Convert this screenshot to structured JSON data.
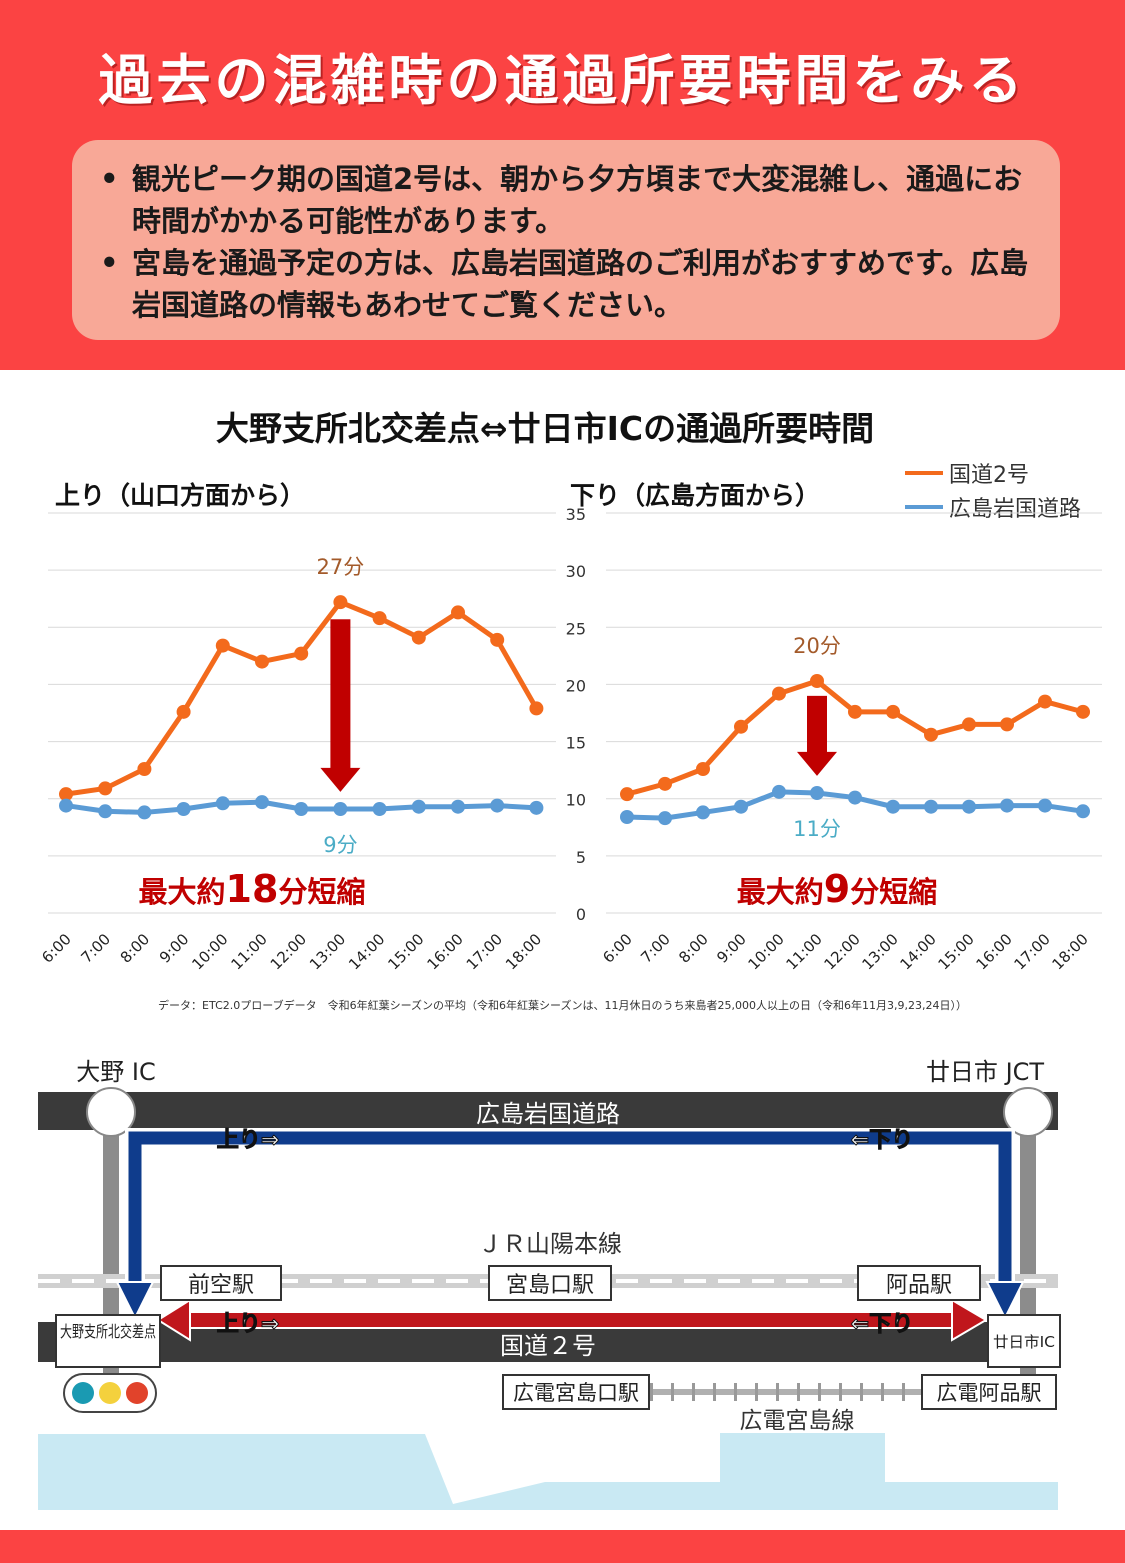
{
  "header": {
    "title": "過去の混雑時の通過所要時間をみる",
    "notices": [
      "観光ピーク期の国道2号は、朝から夕方頃まで大変混雑し、通過にお時間がかかる可能性があります。",
      "宮島を通過予定の方は、広島岩国道路のご利用がおすすめです。広島岩国道路の情報もあわせてご覧ください。"
    ],
    "bullet": "•"
  },
  "chart_title": "大野支所北交差点⇔廿日市ICの通過所要時間",
  "legend": [
    {
      "name": "国道2号",
      "color": "#f36a1c"
    },
    {
      "name": "広島岩国道路",
      "color": "#5b9bd5"
    }
  ],
  "chart_data": [
    {
      "type": "line",
      "title": "上り（山口方面から）",
      "categories": [
        "6:00",
        "7:00",
        "8:00",
        "9:00",
        "10:00",
        "11:00",
        "12:00",
        "13:00",
        "14:00",
        "15:00",
        "16:00",
        "17:00",
        "18:00"
      ],
      "ylim": [
        0,
        35
      ],
      "yticks": [
        0,
        5,
        10,
        15,
        20,
        25,
        30,
        35
      ],
      "grid": true,
      "series": [
        {
          "name": "国道2号",
          "color": "#f36a1c",
          "values": [
            10.4,
            10.9,
            12.6,
            17.6,
            23.4,
            22.0,
            22.7,
            27.2,
            25.8,
            24.1,
            26.3,
            23.9,
            17.9
          ]
        },
        {
          "name": "広島岩国道路",
          "color": "#5b9bd5",
          "values": [
            9.4,
            8.9,
            8.8,
            9.1,
            9.6,
            9.7,
            9.1,
            9.1,
            9.1,
            9.3,
            9.3,
            9.4,
            9.2
          ]
        }
      ],
      "annotations": {
        "max_label": "27分",
        "min_label": "9分",
        "reduction_prefix": "最大約",
        "reduction_value": "18",
        "reduction_suffix": "分短縮",
        "arrow_from": 25.7,
        "arrow_to": 10.6
      }
    },
    {
      "type": "line",
      "title": "下り（広島方面から）",
      "categories": [
        "6:00",
        "7:00",
        "8:00",
        "9:00",
        "10:00",
        "11:00",
        "12:00",
        "13:00",
        "14:00",
        "15:00",
        "16:00",
        "17:00",
        "18:00"
      ],
      "ylim": [
        0,
        35
      ],
      "yticks": [
        0,
        5,
        10,
        15,
        20,
        25,
        30,
        35
      ],
      "grid": true,
      "series": [
        {
          "name": "国道2号",
          "color": "#f36a1c",
          "values": [
            10.4,
            11.3,
            12.6,
            16.3,
            19.2,
            20.3,
            17.6,
            17.6,
            15.6,
            16.5,
            16.5,
            18.5,
            17.6
          ]
        },
        {
          "name": "広島岩国道路",
          "color": "#5b9bd5",
          "values": [
            8.4,
            8.3,
            8.8,
            9.3,
            10.6,
            10.5,
            10.1,
            9.3,
            9.3,
            9.3,
            9.4,
            9.4,
            8.9
          ]
        }
      ],
      "annotations": {
        "max_label": "20分",
        "min_label": "11分",
        "reduction_prefix": "最大約",
        "reduction_value": "9",
        "reduction_suffix": "分短縮",
        "arrow_from": 19.0,
        "arrow_to": 12.0
      }
    }
  ],
  "source_note": "データ：ETC2.0プローブデータ　令和6年紅葉シーズンの平均（令和6年紅葉シーズンは、11月休日のうち来島者25,000人以上の日（令和6年11月3,9,23,24日））",
  "map": {
    "ic_left": "大野 IC",
    "jct_right": "廿日市 JCT",
    "expressway": "広島岩国道路",
    "up_label": "上り⇒",
    "down_label": "⇐下り",
    "jr_line": "ＪＲ山陽本線",
    "station_left": "前空駅",
    "station_center": "宮島口駅",
    "station_right": "阿品駅",
    "intersection": "大野支所北交差点",
    "route2": "国道２号",
    "ic_right": "廿日市IC",
    "tram_left": "広電宮島口駅",
    "tram_right": "広電阿品駅",
    "tram_line": "広電宮島線",
    "colors": {
      "expressway_route": "#0f3c8c",
      "national_route": "#c0161c",
      "sea": "#c9e9f3",
      "road": "#3a3a3a"
    }
  }
}
